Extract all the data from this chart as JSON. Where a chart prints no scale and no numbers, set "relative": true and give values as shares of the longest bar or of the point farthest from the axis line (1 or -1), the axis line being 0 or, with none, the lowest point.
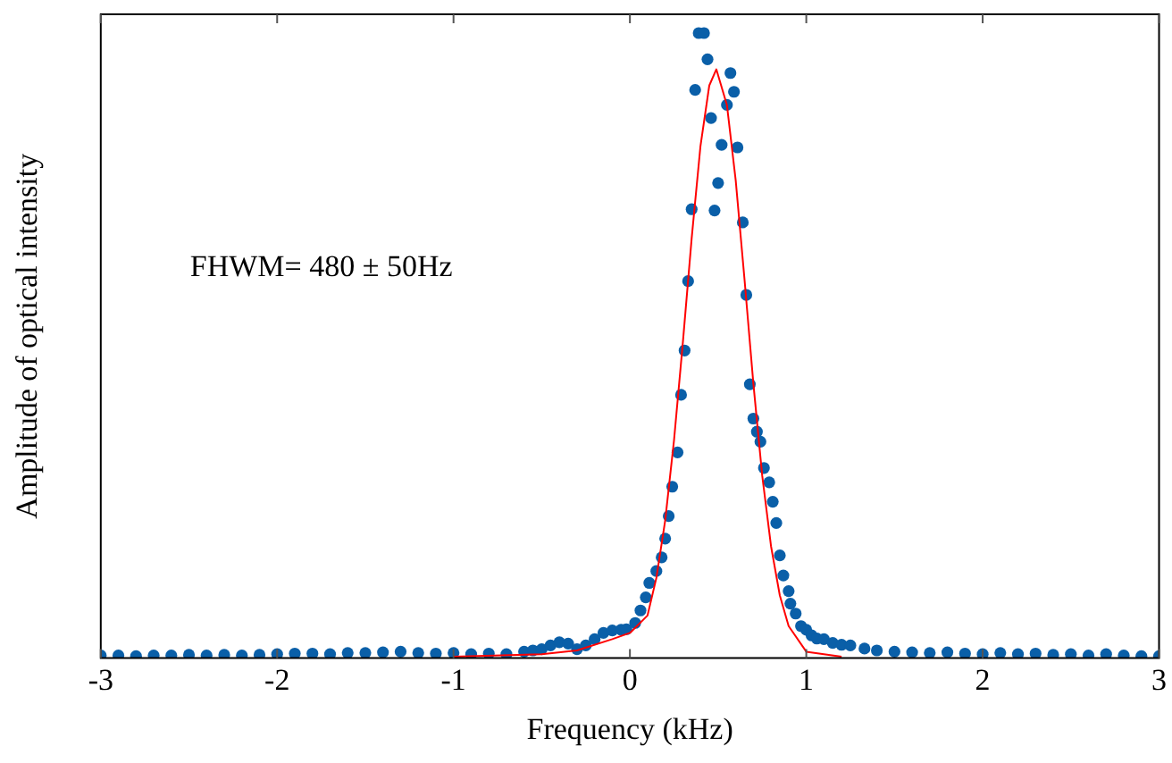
{
  "chart_data": {
    "type": "scatter",
    "relative": true,
    "xlabel": "Frequency (kHz)",
    "ylabel": "Amplitude of optical intensity",
    "annotations": [
      "FHWM= 480 ± 50Hz"
    ],
    "xlim": [
      -3,
      3
    ],
    "xticks": [
      -3,
      -2,
      -1,
      0,
      1,
      2,
      3
    ],
    "grid": false,
    "legend": false,
    "series": [
      {
        "type": "scatter",
        "color": "#0a5fa8",
        "marker": "circle",
        "x": [
          -3,
          -2.9,
          -2.8,
          -2.7,
          -2.6,
          -2.5,
          -2.4,
          -2.3,
          -2.2,
          -2.1,
          -2,
          -1.9,
          -1.8,
          -1.7,
          -1.6,
          -1.5,
          -1.4,
          -1.3,
          -1.2,
          -1.1,
          -1,
          -0.9,
          -0.8,
          -0.7,
          -0.6,
          -0.55,
          -0.5,
          -0.45,
          -0.4,
          -0.35,
          -0.3,
          -0.25,
          -0.2,
          -0.15,
          -0.1,
          -0.05,
          -0.02,
          0.03,
          0.06,
          0.09,
          0.11,
          0.15,
          0.18,
          0.2,
          0.22,
          0.24,
          0.27,
          0.29,
          0.31,
          0.33,
          0.35,
          0.37,
          0.39,
          0.42,
          0.44,
          0.46,
          0.48,
          0.5,
          0.52,
          0.55,
          0.57,
          0.59,
          0.61,
          0.64,
          0.66,
          0.68,
          0.7,
          0.72,
          0.74,
          0.76,
          0.79,
          0.81,
          0.83,
          0.85,
          0.87,
          0.9,
          0.91,
          0.94,
          0.97,
          1.0,
          1.03,
          1.06,
          1.1,
          1.15,
          1.2,
          1.25,
          1.33,
          1.4,
          1.5,
          1.6,
          1.7,
          1.8,
          1.9,
          2,
          2.1,
          2.2,
          2.3,
          2.4,
          2.5,
          2.6,
          2.7,
          2.8,
          2.9,
          3
        ],
        "values": [
          0.004,
          0.004,
          0.003,
          0.004,
          0.004,
          0.005,
          0.004,
          0.005,
          0.004,
          0.005,
          0.006,
          0.007,
          0.007,
          0.006,
          0.008,
          0.008,
          0.009,
          0.01,
          0.008,
          0.007,
          0.008,
          0.006,
          0.007,
          0.006,
          0.01,
          0.012,
          0.014,
          0.02,
          0.025,
          0.023,
          0.014,
          0.02,
          0.03,
          0.04,
          0.044,
          0.045,
          0.046,
          0.056,
          0.076,
          0.097,
          0.12,
          0.139,
          0.161,
          0.191,
          0.227,
          0.274,
          0.329,
          0.421,
          0.492,
          0.603,
          0.718,
          0.909,
          1.0,
          1.0,
          0.958,
          0.864,
          0.716,
          0.76,
          0.821,
          0.885,
          0.936,
          0.906,
          0.817,
          0.697,
          0.581,
          0.438,
          0.383,
          0.362,
          0.346,
          0.304,
          0.281,
          0.25,
          0.216,
          0.164,
          0.132,
          0.107,
          0.087,
          0.071,
          0.051,
          0.045,
          0.036,
          0.031,
          0.03,
          0.024,
          0.021,
          0.02,
          0.015,
          0.012,
          0.01,
          0.009,
          0.008,
          0.009,
          0.007,
          0.006,
          0.008,
          0.006,
          0.007,
          0.005,
          0.006,
          0.004,
          0.006,
          0.004,
          0.003,
          0.003
        ]
      },
      {
        "type": "line",
        "color": "#ff0000",
        "marker": "none",
        "x": [
          -1,
          -0.5,
          -0.3,
          -0.1,
          0,
          0.1,
          0.15,
          0.2,
          0.25,
          0.3,
          0.35,
          0.4,
          0.45,
          0.49,
          0.55,
          0.6,
          0.65,
          0.7,
          0.75,
          0.8,
          0.85,
          0.9,
          1,
          1.2
        ],
        "values": [
          0.002,
          0.006,
          0.012,
          0.03,
          0.04,
          0.068,
          0.128,
          0.22,
          0.348,
          0.504,
          0.671,
          0.819,
          0.916,
          0.942,
          0.885,
          0.764,
          0.605,
          0.439,
          0.292,
          0.179,
          0.1,
          0.051,
          0.01,
          0.002
        ]
      }
    ]
  }
}
